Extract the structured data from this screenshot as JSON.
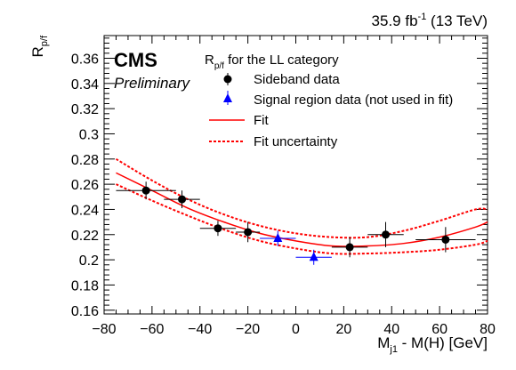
{
  "chart_data": {
    "type": "scatter",
    "lumi_label": "35.9 fb",
    "lumi_sup": "-1",
    "lumi_energy": " (13 TeV)",
    "experiment": "CMS",
    "status": "Preliminary",
    "legend_title_main": "R",
    "legend_title_sub": "p/f",
    "legend_title_rest": " for the LL category",
    "xlabel_main": "M",
    "xlabel_sub": "j1",
    "xlabel_rest": " - M(H) [GeV]",
    "ylabel_main": "R",
    "ylabel_sub": "p/f",
    "xlim": [
      -80,
      80
    ],
    "ylim": [
      0.157,
      0.378
    ],
    "xticks": [
      -80,
      -60,
      -40,
      -20,
      0,
      20,
      40,
      60,
      80
    ],
    "yticks": [
      0.16,
      0.18,
      0.2,
      0.22,
      0.24,
      0.26,
      0.28,
      0.3,
      0.32,
      0.34,
      0.36
    ],
    "series": [
      {
        "name": "Sideband data",
        "marker": "circle",
        "color": "#000000",
        "points": [
          {
            "x": -62.5,
            "y": 0.255,
            "xerr": 12.5,
            "yerr": 0.007
          },
          {
            "x": -47.5,
            "y": 0.248,
            "xerr": 7.5,
            "yerr": 0.007
          },
          {
            "x": -32.5,
            "y": 0.225,
            "xerr": 7.5,
            "yerr": 0.006
          },
          {
            "x": -20.0,
            "y": 0.222,
            "xerr": 5.0,
            "yerr": 0.008
          },
          {
            "x": 22.5,
            "y": 0.21,
            "xerr": 7.5,
            "yerr": 0.008
          },
          {
            "x": 37.5,
            "y": 0.22,
            "xerr": 7.5,
            "yerr": 0.01
          },
          {
            "x": 62.5,
            "y": 0.216,
            "xerr": 12.5,
            "yerr": 0.01
          }
        ]
      },
      {
        "name": "Signal region data (not used in fit)",
        "marker": "triangle",
        "color": "#0000ff",
        "points": [
          {
            "x": -7.5,
            "y": 0.217,
            "xerr": 7.5,
            "yerr": 0.006
          },
          {
            "x": 7.5,
            "y": 0.202,
            "xerr": 7.5,
            "yerr": 0.006
          }
        ]
      },
      {
        "name": "Fit",
        "style": "solid",
        "color": "#ff0000",
        "x": [
          -75,
          -60,
          -45,
          -30,
          -15,
          0,
          15,
          30,
          45,
          60,
          75,
          80
        ],
        "y": [
          0.269,
          0.255,
          0.241,
          0.23,
          0.221,
          0.215,
          0.211,
          0.211,
          0.213,
          0.218,
          0.226,
          0.23
        ]
      },
      {
        "name": "Fit uncertainty",
        "style": "dashed",
        "color": "#ff0000",
        "x": [
          -75,
          -60,
          -45,
          -30,
          -15,
          0,
          15,
          30,
          45,
          60,
          75,
          80
        ],
        "y_upper": [
          0.28,
          0.263,
          0.248,
          0.236,
          0.227,
          0.221,
          0.218,
          0.218,
          0.223,
          0.231,
          0.24,
          0.24
        ],
        "y_lower": [
          0.26,
          0.247,
          0.235,
          0.224,
          0.215,
          0.209,
          0.205,
          0.205,
          0.206,
          0.208,
          0.212,
          0.215
        ]
      }
    ]
  }
}
